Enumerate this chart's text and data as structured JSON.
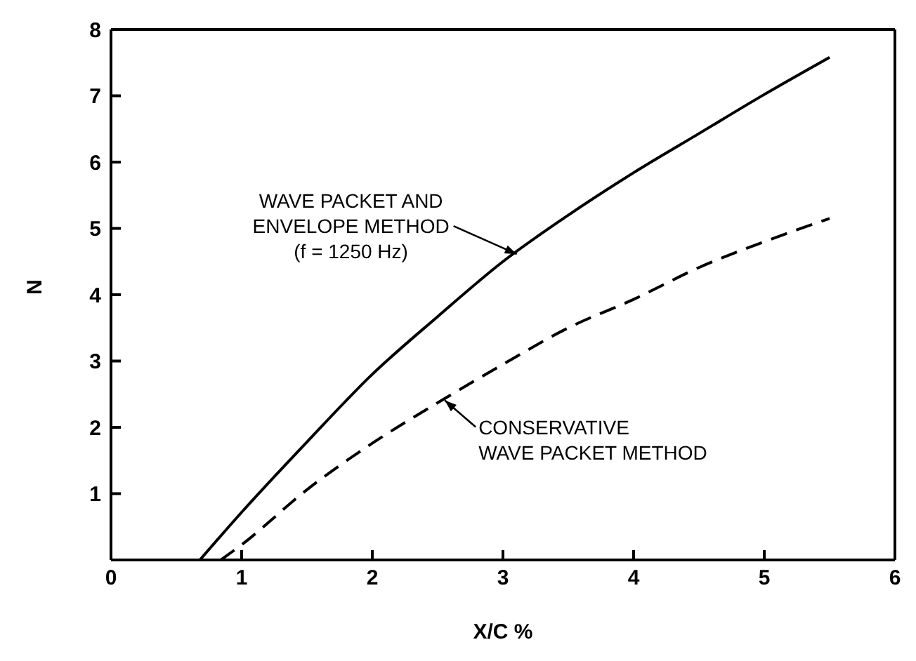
{
  "chart_data": {
    "type": "line",
    "xlabel": "X/C %",
    "ylabel": "N",
    "xlim": [
      0,
      6
    ],
    "xticks": [
      0,
      1,
      2,
      3,
      4,
      5,
      6
    ],
    "ylim": [
      0,
      8
    ],
    "yticks": [
      {
        "value": 0,
        "label": null
      },
      1,
      2,
      3,
      4,
      5,
      6,
      7,
      8
    ],
    "grid": false,
    "legend": false,
    "marker": "none",
    "series": [
      {
        "color": "#000000",
        "line_style": "solid",
        "x": [
          0.68,
          1,
          1.5,
          2,
          2.5,
          3,
          3.5,
          4,
          4.5,
          5,
          5.5
        ],
        "values": [
          0,
          0.72,
          1.78,
          2.8,
          3.67,
          4.5,
          5.2,
          5.84,
          6.43,
          7.02,
          7.58
        ]
      },
      {
        "color": "#000000",
        "line_style": "dashed",
        "x": [
          0.84,
          1,
          1.5,
          2,
          2.5,
          3,
          3.5,
          4,
          4.5,
          5,
          5.5
        ],
        "values": [
          0,
          0.23,
          1.06,
          1.76,
          2.37,
          2.95,
          3.5,
          3.93,
          4.41,
          4.8,
          5.15
        ]
      }
    ],
    "annotations": [
      {
        "text": "WAVE PACKET AND\nENVELOPE METHOD\n(f = 1250 Hz)",
        "x": 3.1,
        "y": 4.6
      },
      {
        "text": "CONSERVATIVE\nWAVE PACKET METHOD",
        "x": 2.55,
        "y": 2.4
      }
    ]
  }
}
